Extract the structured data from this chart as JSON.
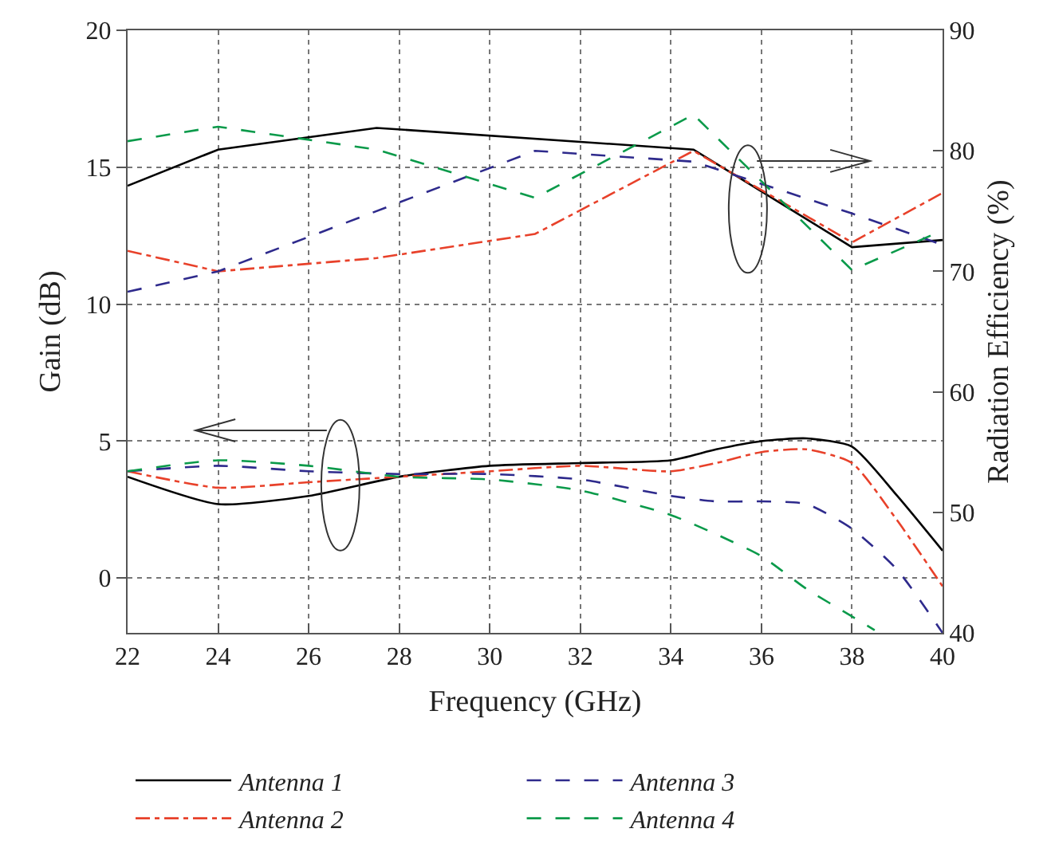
{
  "chart_data": {
    "type": "line",
    "xlabel": "Frequency (GHz)",
    "ylabel": "Gain (dB)",
    "y2label": "Radiation Efficiency (%)",
    "xlim": [
      22,
      40
    ],
    "xticks": [
      22,
      24,
      26,
      28,
      30,
      32,
      34,
      36,
      38,
      40
    ],
    "ylim": [
      -2,
      20
    ],
    "yticks": [
      0,
      5,
      10,
      15,
      20
    ],
    "y2lim": [
      40,
      90
    ],
    "y2ticks": [
      40,
      50,
      60,
      70,
      80,
      90
    ],
    "grid": true,
    "legend": "bottom",
    "series": [
      {
        "name": "Antenna 1",
        "color": "#000000",
        "line_style": "solid",
        "x": [
          22,
          24,
          26,
          28,
          30,
          32,
          34,
          35,
          36,
          37,
          38,
          39,
          40
        ],
        "values": [
          3.7,
          2.7,
          3.0,
          3.7,
          4.1,
          4.2,
          4.3,
          4.7,
          5.0,
          5.1,
          4.8,
          3.0,
          1.0
        ]
      },
      {
        "name": "Antenna 2",
        "color": "#e8412a",
        "line_style": "dashdot",
        "x": [
          22,
          24,
          26,
          28,
          30,
          32,
          34,
          35,
          36,
          37,
          38,
          39,
          40
        ],
        "values": [
          3.9,
          3.3,
          3.5,
          3.7,
          3.9,
          4.1,
          3.9,
          4.2,
          4.6,
          4.7,
          4.2,
          2.1,
          -0.3
        ]
      },
      {
        "name": "Antenna 3",
        "color": "#2e2a8c",
        "line_style": "dashed",
        "x": [
          22,
          24,
          26,
          28,
          30,
          32,
          34,
          35,
          36,
          37,
          38,
          39,
          40
        ],
        "values": [
          3.9,
          4.1,
          3.9,
          3.8,
          3.8,
          3.6,
          3.0,
          2.8,
          2.8,
          2.7,
          1.8,
          0.3,
          -2.0
        ]
      },
      {
        "name": "Antenna 4",
        "color": "#0a9a4a",
        "line_style": "dashed",
        "x": [
          22,
          24,
          26,
          28,
          30,
          32,
          34,
          35,
          36,
          37,
          38,
          38.5
        ],
        "values": [
          3.9,
          4.3,
          4.1,
          3.7,
          3.6,
          3.2,
          2.3,
          1.6,
          0.8,
          -0.4,
          -1.4,
          -1.9
        ]
      },
      {
        "color": "#000000",
        "line_style": "solid",
        "axis": "y2",
        "x": [
          22,
          24,
          27.5,
          34.5,
          38,
          40
        ],
        "values": [
          77.1,
          80.1,
          81.9,
          80.1,
          72.0,
          72.6
        ]
      },
      {
        "color": "#e8412a",
        "line_style": "dashdot",
        "axis": "y2",
        "x": [
          22,
          24,
          27.5,
          31,
          34.5,
          38,
          40
        ],
        "values": [
          71.7,
          70.0,
          71.1,
          73.1,
          80.0,
          72.4,
          76.5
        ]
      },
      {
        "color": "#2e2a8c",
        "line_style": "dashed",
        "axis": "y2",
        "x": [
          22,
          24,
          31,
          34.5,
          38,
          40
        ],
        "values": [
          68.3,
          70.0,
          80.0,
          79.1,
          74.8,
          72.2
        ]
      },
      {
        "color": "#0a9a4a",
        "line_style": "dashed",
        "axis": "y2",
        "x": [
          22,
          24,
          27.5,
          31,
          34.5,
          38,
          40
        ],
        "values": [
          80.8,
          82.0,
          80.1,
          76.1,
          83.0,
          70.1,
          73.4
        ]
      }
    ]
  }
}
